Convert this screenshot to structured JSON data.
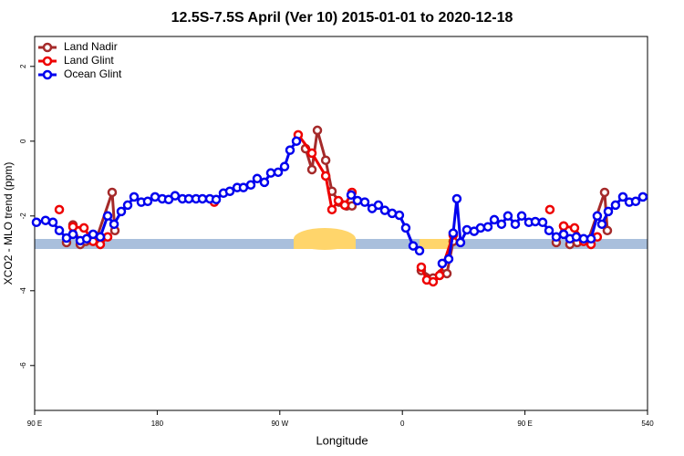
{
  "chart_data": {
    "type": "line",
    "title": "12.5S-7.5S April (Ver 10)   2015-01-01 to 2020-12-18",
    "x_label": "Longitude",
    "y_label": "XCO2 - MLO trend (ppm)",
    "xlim": [
      90,
      540
    ],
    "ylim": [
      -7.2,
      2.8
    ],
    "xticks": [
      {
        "value": 90,
        "label": "90 E"
      },
      180,
      {
        "value": 270,
        "label": "90 W"
      },
      {
        "value": 360,
        "label": "0"
      },
      {
        "value": 450,
        "label": "90 E"
      },
      540
    ],
    "yticks": [
      2,
      0,
      -2,
      -4,
      -6
    ],
    "legend": "top-left",
    "series": [
      {
        "name": "Land Nadir",
        "color": "#a52a2a",
        "x": [
          113.4,
          118.1,
          123.5,
          127.5,
          134.9,
          146.9,
          148.9,
          null,
          288.9,
          293.6,
          297.6,
          303.7,
          308.3,
          313.6,
          319,
          323,
          null,
          373.9,
          382.6,
          388.7,
          392.7,
          397.3,
          null,
          473,
          478.4,
          483,
          488.4,
          496.4,
          508.5,
          510.5
        ],
        "values": [
          -2.71,
          -2.24,
          -2.76,
          -2.68,
          -2.66,
          -1.37,
          -2.39,
          null,
          -0.2,
          -0.76,
          0.29,
          -0.51,
          -1.34,
          -1.63,
          -1.73,
          -1.73,
          null,
          -3.46,
          -3.66,
          -3.54,
          -3.54,
          -2.68,
          null,
          -2.71,
          -2.27,
          -2.76,
          -2.71,
          -2.66,
          -1.37,
          -2.39
        ]
      },
      {
        "name": "Land Glint",
        "color": "#ee0000",
        "x": [
          108.1,
          null,
          118.1,
          126.2,
          132.9,
          138.2,
          143.6,
          null,
          221.9,
          null,
          283.5,
          293.6,
          303.7,
          308.3,
          313,
          317.7,
          323,
          null,
          373.9,
          377.9,
          382.6,
          387.3,
          397.3,
          null,
          468.3,
          null,
          478.4,
          486.4,
          493.1,
          498.5,
          503.1
        ],
        "values": [
          -1.83,
          null,
          -2.29,
          -2.32,
          -2.68,
          -2.76,
          -2.56,
          null,
          -1.63,
          null,
          0.17,
          -0.32,
          -0.93,
          -1.83,
          -1.59,
          -1.71,
          -1.37,
          null,
          -3.37,
          -3.71,
          -3.76,
          -3.59,
          -2.51,
          null,
          -1.83,
          null,
          -2.27,
          -2.32,
          -2.68,
          -2.76,
          -2.56
        ]
      },
      {
        "name": "Ocean Glint",
        "color": "#0000ee",
        "x": [
          91.3,
          98,
          103.4,
          108.1,
          113.4,
          118.1,
          123.5,
          128.2,
          132.9,
          138.2,
          143.6,
          148.3,
          153.6,
          158.3,
          163,
          168.3,
          173,
          178.4,
          183.7,
          188.4,
          193.1,
          198.5,
          203.2,
          208.5,
          213.2,
          218.6,
          223.3,
          228.6,
          233.3,
          238.7,
          243.3,
          248.7,
          253.4,
          258.7,
          263.4,
          268.8,
          273.5,
          277.5,
          282.2,
          null,
          322.4,
          327,
          332.4,
          337.8,
          342.4,
          347.1,
          352.5,
          357.8,
          362.5,
          367.9,
          372.6,
          null,
          389.3,
          394,
          397.3,
          400,
          402.7,
          407.4,
          412.7,
          417.4,
          422.8,
          427.5,
          432.8,
          437.5,
          442.9,
          447.6,
          452.9,
          457.6,
          463,
          467.7,
          473,
          478.4,
          483,
          487.7,
          493.1,
          498.5,
          503.1,
          506.5,
          511.2,
          516.5,
          521.9,
          526.6,
          531.3,
          536.6
        ],
        "values": [
          -2.17,
          -2.12,
          -2.17,
          -2.39,
          -2.59,
          -2.49,
          -2.66,
          -2.61,
          -2.49,
          -2.56,
          -2.0,
          -2.22,
          -1.88,
          -1.71,
          -1.49,
          -1.63,
          -1.61,
          -1.49,
          -1.54,
          -1.56,
          -1.46,
          -1.54,
          -1.54,
          -1.54,
          -1.54,
          -1.54,
          -1.56,
          -1.39,
          -1.34,
          -1.24,
          -1.24,
          -1.17,
          -1.0,
          -1.1,
          -0.85,
          -0.83,
          -0.68,
          -0.24,
          0,
          null,
          -1.44,
          -1.59,
          -1.63,
          -1.8,
          -1.71,
          -1.85,
          -1.93,
          -1.98,
          -2.32,
          -2.8,
          -2.93,
          null,
          -3.27,
          -3.15,
          -2.46,
          -1.54,
          -2.71,
          -2.37,
          -2.41,
          -2.32,
          -2.29,
          -2.1,
          -2.22,
          -2.0,
          -2.22,
          -2.0,
          -2.17,
          -2.15,
          -2.17,
          -2.39,
          -2.56,
          -2.49,
          -2.61,
          -2.56,
          -2.61,
          -2.61,
          -2.0,
          -2.22,
          -1.88,
          -1.71,
          -1.49,
          -1.63,
          -1.61,
          -1.49
        ]
      }
    ]
  }
}
